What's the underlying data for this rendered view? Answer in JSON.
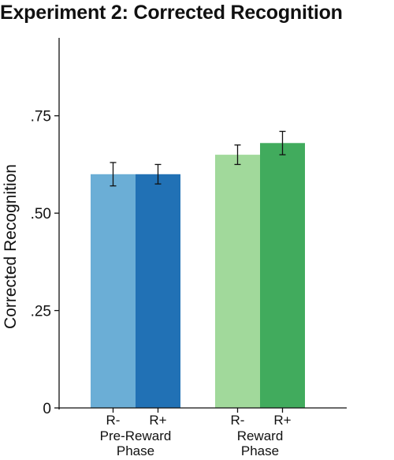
{
  "chart_data": {
    "type": "bar",
    "title": "Experiment 2: Corrected Recognition",
    "ylabel": "Corrected Recognition",
    "xlabel": "",
    "ylim": [
      0,
      0.95
    ],
    "yticks": [
      {
        "value": 0,
        "label": "0"
      },
      {
        "value": 0.25,
        "label": ".25"
      },
      {
        "value": 0.5,
        "label": ".50"
      },
      {
        "value": 0.75,
        "label": ".75"
      }
    ],
    "groups": [
      {
        "label_lines": [
          "Pre-Reward",
          "Phase"
        ]
      },
      {
        "label_lines": [
          "Reward",
          "Phase"
        ]
      }
    ],
    "bars": [
      {
        "category": "R-",
        "group": 0,
        "value": 0.6,
        "error": 0.03,
        "color": "#6baed6"
      },
      {
        "category": "R+",
        "group": 0,
        "value": 0.6,
        "error": 0.025,
        "color": "#2171b5"
      },
      {
        "category": "R-",
        "group": 1,
        "value": 0.65,
        "error": 0.025,
        "color": "#a1d99b"
      },
      {
        "category": "R+",
        "group": 1,
        "value": 0.68,
        "error": 0.03,
        "color": "#41ab5d"
      }
    ],
    "grid": false,
    "legend": "none"
  }
}
